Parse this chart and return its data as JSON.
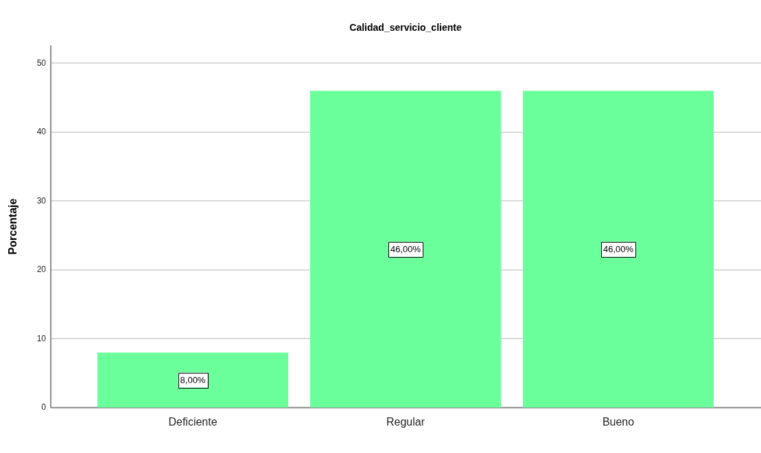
{
  "chart_data": {
    "type": "bar",
    "title": "Calidad_servicio_cliente",
    "ylabel": "Porcentaje",
    "categories": [
      "Deficiente",
      "Regular",
      "Bueno"
    ],
    "values": [
      8,
      46,
      46
    ],
    "color": "#6bff9b",
    "value_labels": [
      "8,00%",
      "46,00%",
      "46,00%"
    ],
    "ylim": [
      0,
      52.6
    ],
    "yticks": [
      0,
      10,
      20,
      30,
      40,
      50
    ],
    "grid": "y"
  }
}
